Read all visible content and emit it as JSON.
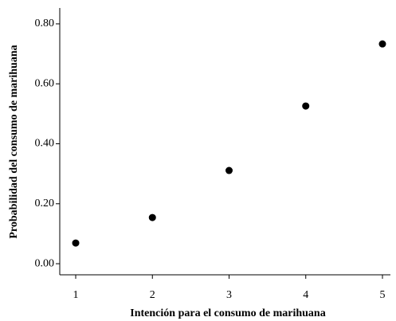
{
  "chart_data": {
    "type": "scatter",
    "x_label": "Intención para el consumo de marihuana",
    "y_label": "Probabilidad del consumo de marihuana",
    "series": [
      {
        "color": "#000000",
        "x": [
          1,
          2,
          3,
          4,
          5
        ],
        "values": [
          0.069,
          0.154,
          0.311,
          0.526,
          0.733
        ]
      }
    ],
    "xlim": [
      0.792,
      5.104
    ],
    "xticks": [
      1,
      2,
      3,
      4,
      5
    ],
    "ylim": [
      -0.037,
      0.853
    ],
    "yticks": [
      {
        "value": 0,
        "label": "0.00"
      },
      {
        "value": 0.2,
        "label": "0.20"
      },
      {
        "value": 0.4,
        "label": "0.40"
      },
      {
        "value": 0.6,
        "label": "0.60"
      },
      {
        "value": 0.8,
        "label": "0.80"
      }
    ]
  }
}
